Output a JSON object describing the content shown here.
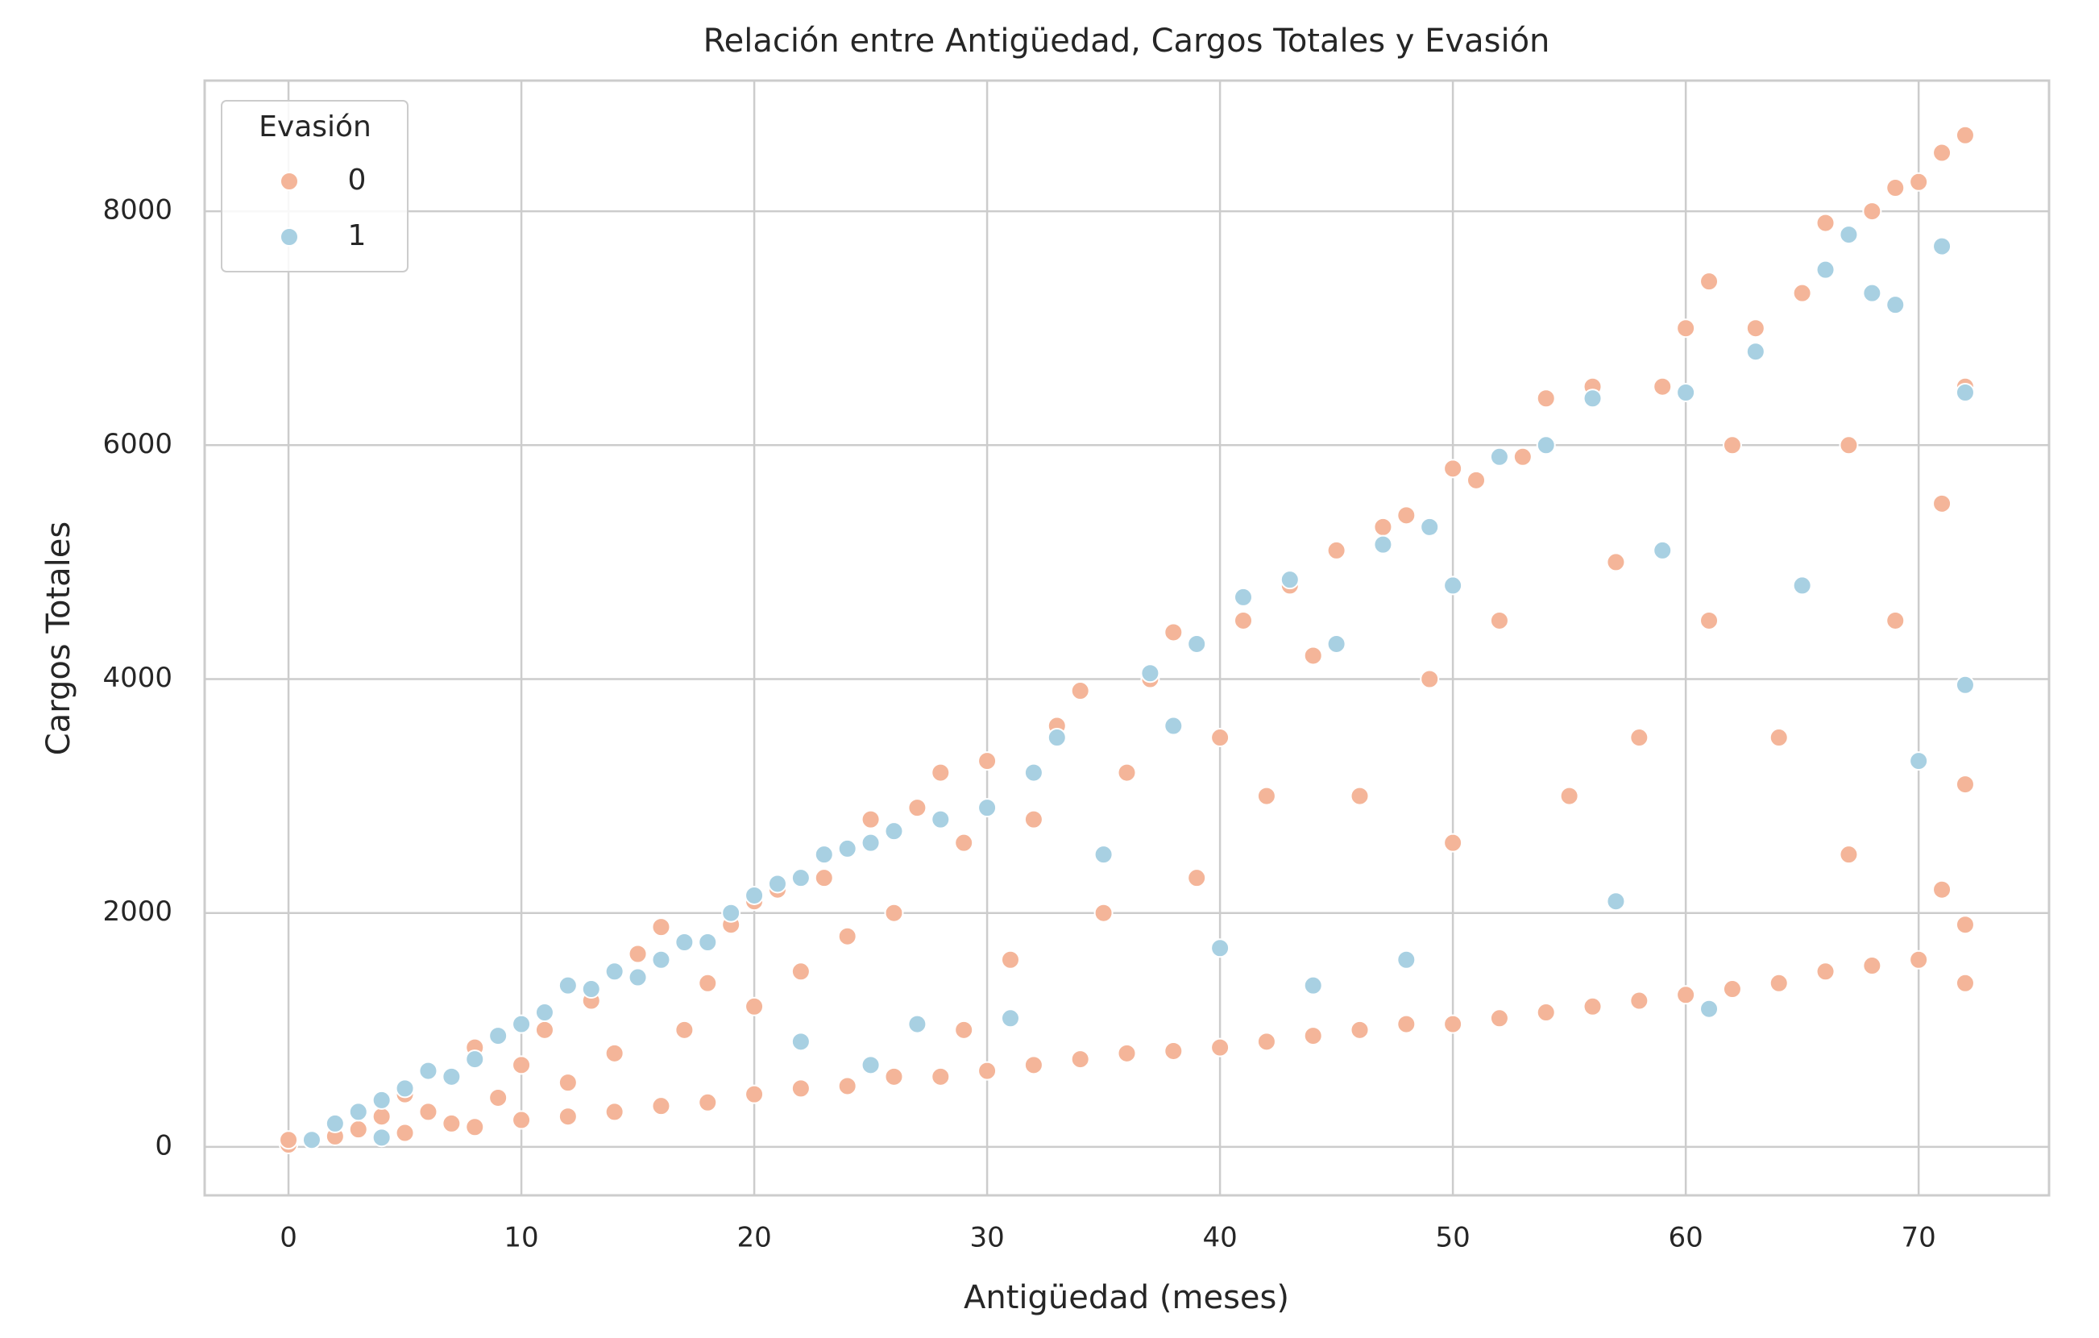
{
  "chart_data": {
    "type": "scatter",
    "title": "Relación entre Antigüedad, Cargos Totales y Evasión",
    "x_label": "Antigüedad (meses)",
    "y_label": "Cargos Totales",
    "legend_title": "Evasión",
    "legend_position": "upper left",
    "grid": true,
    "xlim": [
      -3.6,
      75.6
    ],
    "xticks": [
      0,
      10,
      20,
      30,
      40,
      50,
      60,
      70
    ],
    "ylim": [
      -414,
      9117
    ],
    "yticks": [
      0,
      2000,
      4000,
      6000,
      8000
    ],
    "series": [
      {
        "name": "0",
        "color": "#f4b599",
        "x": [
          0,
          0,
          2,
          3,
          4,
          5,
          5,
          6,
          7,
          7,
          8,
          8,
          9,
          10,
          10,
          11,
          12,
          12,
          13,
          14,
          14,
          15,
          16,
          16,
          17,
          18,
          18,
          19,
          20,
          20,
          20,
          21,
          22,
          22,
          23,
          24,
          24,
          25,
          26,
          26,
          27,
          28,
          28,
          29,
          29,
          30,
          30,
          31,
          32,
          32,
          33,
          34,
          34,
          35,
          36,
          36,
          37,
          38,
          38,
          39,
          40,
          40,
          41,
          42,
          42,
          43,
          44,
          44,
          45,
          46,
          46,
          47,
          48,
          48,
          49,
          50,
          50,
          50,
          51,
          52,
          52,
          53,
          54,
          54,
          55,
          56,
          56,
          57,
          58,
          58,
          59,
          60,
          60,
          61,
          61,
          62,
          62,
          63,
          64,
          64,
          65,
          66,
          66,
          67,
          67,
          68,
          68,
          69,
          69,
          70,
          70,
          71,
          71,
          71,
          72,
          72,
          72,
          72,
          72
        ],
        "values": [
          20,
          60,
          90,
          150,
          260,
          120,
          450,
          300,
          200,
          600,
          170,
          850,
          420,
          230,
          700,
          1000,
          260,
          550,
          1250,
          300,
          800,
          1650,
          1880,
          350,
          1000,
          380,
          1400,
          1900,
          450,
          1200,
          2100,
          2200,
          500,
          1500,
          2300,
          520,
          1800,
          2800,
          600,
          2000,
          2900,
          600,
          3200,
          1000,
          2600,
          650,
          3300,
          1600,
          700,
          2800,
          3600,
          750,
          3900,
          2000,
          800,
          3200,
          4000,
          820,
          4400,
          2300,
          850,
          3500,
          4500,
          900,
          3000,
          4800,
          950,
          4200,
          5100,
          1000,
          3000,
          5300,
          1050,
          5400,
          4000,
          1050,
          2600,
          5800,
          5700,
          1100,
          4500,
          5900,
          1150,
          6400,
          3000,
          1200,
          6500,
          5000,
          1250,
          3500,
          6500,
          1300,
          7000,
          4500,
          7400,
          1350,
          6000,
          7000,
          1400,
          3500,
          7300,
          1500,
          7900,
          2500,
          6000,
          1550,
          8000,
          4500,
          8200,
          1600,
          8250,
          8500,
          2200,
          5500,
          1400,
          8650,
          3100,
          6500,
          1900
        ]
      },
      {
        "name": "1",
        "color": "#a8d0e2",
        "x": [
          1,
          2,
          3,
          4,
          4,
          5,
          6,
          7,
          8,
          9,
          10,
          11,
          12,
          13,
          14,
          15,
          16,
          17,
          18,
          19,
          20,
          21,
          22,
          22,
          23,
          24,
          25,
          25,
          26,
          27,
          28,
          30,
          31,
          32,
          33,
          35,
          37,
          38,
          39,
          40,
          41,
          43,
          44,
          45,
          47,
          48,
          49,
          50,
          52,
          54,
          56,
          57,
          59,
          60,
          61,
          63,
          65,
          66,
          67,
          68,
          69,
          70,
          71,
          72,
          72
        ],
        "values": [
          60,
          200,
          300,
          80,
          400,
          500,
          650,
          600,
          750,
          950,
          1050,
          1150,
          1380,
          1350,
          1500,
          1450,
          1600,
          1750,
          1750,
          2000,
          2150,
          2250,
          900,
          2300,
          2500,
          2550,
          700,
          2600,
          2700,
          1050,
          2800,
          2900,
          1100,
          3200,
          3500,
          2500,
          4050,
          3600,
          4300,
          1700,
          4700,
          4850,
          1380,
          4300,
          5150,
          1600,
          5300,
          4800,
          5900,
          6000,
          6400,
          2100,
          5100,
          6450,
          1180,
          6800,
          4800,
          7500,
          7800,
          7300,
          7200,
          3300,
          7700,
          6450,
          3950
        ]
      }
    ]
  }
}
